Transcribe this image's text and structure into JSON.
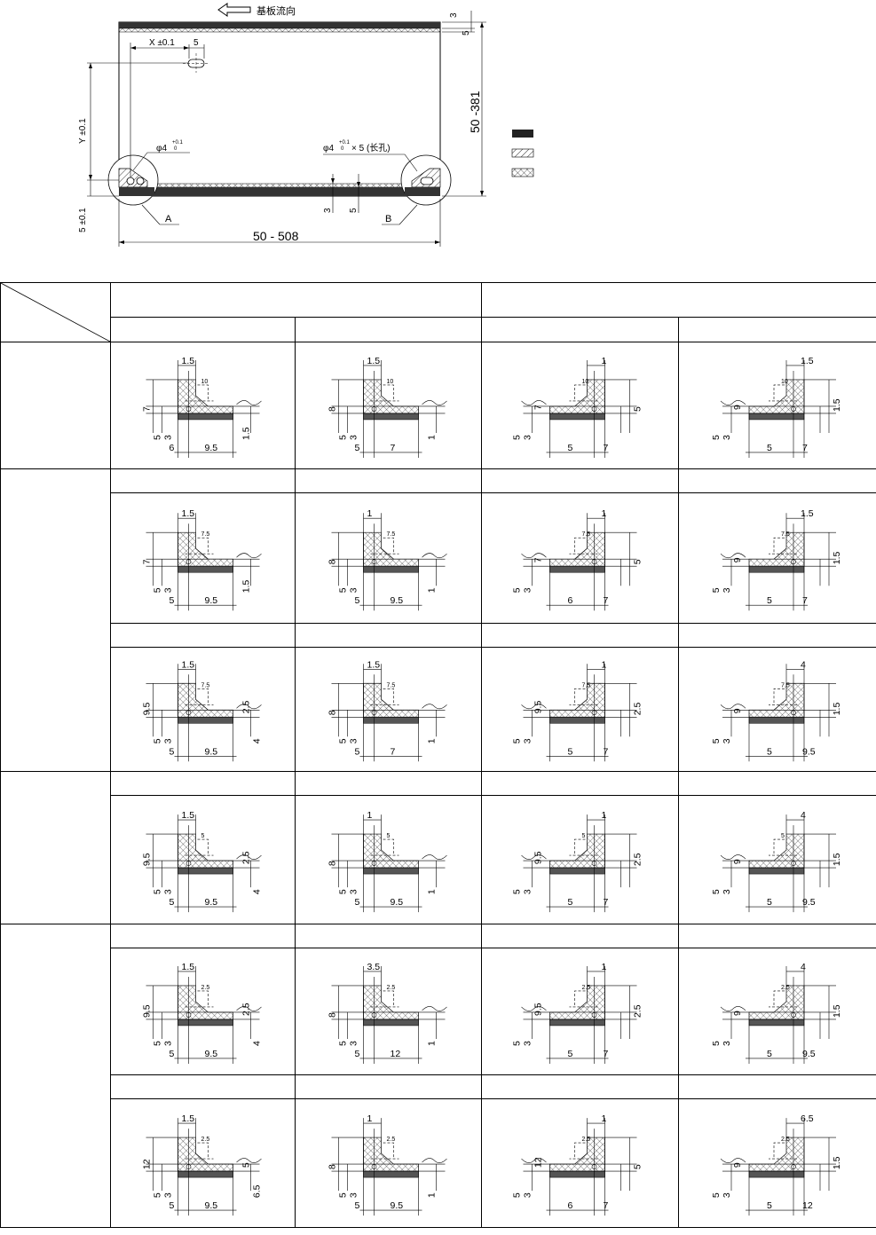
{
  "top": {
    "flow_label": "基板流向",
    "dim_x": "X ±0.1",
    "dim_x_small": "5",
    "dim_y": "Y ±0.1",
    "dim_bottom_y": "5 ±0.1",
    "dim_width": "50 - 508",
    "dim_height": "50 -381",
    "dim_top_3": "3",
    "dim_top_5": "5",
    "dim_bot_3": "3",
    "dim_bot_5": "5",
    "hole_a": "φ4",
    "hole_a_tol_up": "+0.1",
    "hole_a_tol_dn": "0",
    "hole_b": "φ4",
    "hole_b_tol_up": "+0.1",
    "hole_b_tol_dn": "0",
    "hole_b_suffix": "× 5 (长孔)",
    "label_a": "A",
    "label_b": "B",
    "legend": [
      "solid",
      "hatch",
      "crosshatch"
    ]
  },
  "table": {
    "rows": [
      {
        "type": "cells",
        "height": 143,
        "cells": [
          {
            "mirror": false,
            "top": "1.5",
            "inner": "10",
            "left": [
              "7",
              "5",
              "3"
            ],
            "right": [
              "1.5"
            ],
            "bottom": [
              "6",
              "9.5"
            ]
          },
          {
            "mirror": false,
            "top": "1.5",
            "inner": "10",
            "left": [
              "8",
              "5",
              "3"
            ],
            "right": [
              "1"
            ],
            "bottom": [
              "5",
              "7"
            ]
          },
          {
            "mirror": true,
            "top": "1",
            "inner": "10",
            "left": [
              "5"
            ],
            "right": [
              "7",
              "3",
              "5"
            ],
            "bottom": [
              "7",
              "5"
            ]
          },
          {
            "mirror": true,
            "top": "1.5",
            "inner": "10",
            "left": [
              "1.5"
            ],
            "right": [
              "9",
              "3",
              "5"
            ],
            "bottom": [
              "7",
              "5"
            ]
          }
        ]
      },
      {
        "type": "cells",
        "height": 147,
        "cells": [
          {
            "mirror": false,
            "top": "1.5",
            "inner": "7.5",
            "left": [
              "7",
              "5",
              "3"
            ],
            "right": [
              "1.5"
            ],
            "bottom": [
              "5",
              "9.5"
            ]
          },
          {
            "mirror": false,
            "top": "1",
            "inner": "7.5",
            "left": [
              "8",
              "5",
              "3"
            ],
            "right": [
              "1"
            ],
            "bottom": [
              "5",
              "9.5"
            ]
          },
          {
            "mirror": true,
            "top": "1",
            "inner": "7.5",
            "left": [
              "5"
            ],
            "right": [
              "7",
              "3",
              "5"
            ],
            "bottom": [
              "7",
              "6"
            ]
          },
          {
            "mirror": true,
            "top": "1.5",
            "inner": "7.5",
            "left": [
              "1.5"
            ],
            "right": [
              "9",
              "3",
              "5"
            ],
            "bottom": [
              "7",
              "5"
            ]
          }
        ]
      },
      {
        "type": "cells",
        "height": 140,
        "cells": [
          {
            "mirror": false,
            "top": "1.5",
            "inner": "7.5",
            "left": [
              "9.5",
              "5",
              "3"
            ],
            "right": [
              "2.5",
              "4"
            ],
            "bottom": [
              "5",
              "9.5"
            ]
          },
          {
            "mirror": false,
            "top": "1.5",
            "inner": "7.5",
            "left": [
              "8",
              "5",
              "3"
            ],
            "right": [
              "1"
            ],
            "bottom": [
              "5",
              "7"
            ]
          },
          {
            "mirror": true,
            "top": "1",
            "inner": "7.5",
            "left": [
              "2.5"
            ],
            "right": [
              "9.5",
              "3",
              "5"
            ],
            "bottom": [
              "7",
              "5"
            ]
          },
          {
            "mirror": true,
            "top": "4",
            "inner": "7.5",
            "left": [
              "1.5"
            ],
            "right": [
              "9",
              "3",
              "5"
            ],
            "bottom": [
              "9.5",
              "5"
            ]
          }
        ]
      },
      {
        "type": "cells",
        "height": 145,
        "cells": [
          {
            "mirror": false,
            "top": "1.5",
            "inner": "5",
            "left": [
              "9.5",
              "5",
              "3"
            ],
            "right": [
              "2.5",
              "4"
            ],
            "bottom": [
              "5",
              "9.5"
            ]
          },
          {
            "mirror": false,
            "top": "1",
            "inner": "5",
            "left": [
              "8",
              "5",
              "3"
            ],
            "right": [
              "1"
            ],
            "bottom": [
              "5",
              "9.5"
            ]
          },
          {
            "mirror": true,
            "top": "1",
            "inner": "5",
            "left": [
              "2.5"
            ],
            "right": [
              "9.5",
              "3",
              "5"
            ],
            "bottom": [
              "7",
              "5"
            ]
          },
          {
            "mirror": true,
            "top": "4",
            "inner": "5",
            "left": [
              "1.5"
            ],
            "right": [
              "9",
              "3",
              "5"
            ],
            "bottom": [
              "9.5",
              "5"
            ]
          }
        ]
      },
      {
        "type": "cells",
        "height": 143,
        "cells": [
          {
            "mirror": false,
            "top": "1.5",
            "inner": "2.5",
            "left": [
              "9.5",
              "5",
              "3"
            ],
            "right": [
              "2.5",
              "4"
            ],
            "bottom": [
              "5",
              "9.5"
            ]
          },
          {
            "mirror": false,
            "top": "3.5",
            "inner": "2.5",
            "left": [
              "8",
              "5",
              "3"
            ],
            "right": [
              "1"
            ],
            "bottom": [
              "5",
              "12"
            ]
          },
          {
            "mirror": true,
            "top": "1",
            "inner": "2.5",
            "left": [
              "2.5"
            ],
            "right": [
              "9.5",
              "3",
              "5"
            ],
            "bottom": [
              "7",
              "5"
            ]
          },
          {
            "mirror": true,
            "top": "4",
            "inner": "2.5",
            "left": [
              "1.5"
            ],
            "right": [
              "9",
              "3",
              "5"
            ],
            "bottom": [
              "9.5",
              "5"
            ]
          }
        ]
      },
      {
        "type": "cells",
        "height": 145,
        "cells": [
          {
            "mirror": false,
            "top": "1.5",
            "inner": "2.5",
            "left": [
              "12",
              "5",
              "3"
            ],
            "right": [
              "5",
              "6.5"
            ],
            "bottom": [
              "5",
              "9.5"
            ]
          },
          {
            "mirror": false,
            "top": "1",
            "inner": "2.5",
            "left": [
              "8",
              "5",
              "3"
            ],
            "right": [
              "1"
            ],
            "bottom": [
              "5",
              "9.5"
            ]
          },
          {
            "mirror": true,
            "top": "1",
            "inner": "2.5",
            "left": [
              "5"
            ],
            "right": [
              "12",
              "3",
              "5"
            ],
            "bottom": [
              "7",
              "6"
            ]
          },
          {
            "mirror": true,
            "top": "6.5",
            "inner": "2.5",
            "left": [
              "1.5"
            ],
            "right": [
              "9",
              "3",
              "5"
            ],
            "bottom": [
              "12",
              "5"
            ]
          }
        ]
      }
    ]
  }
}
